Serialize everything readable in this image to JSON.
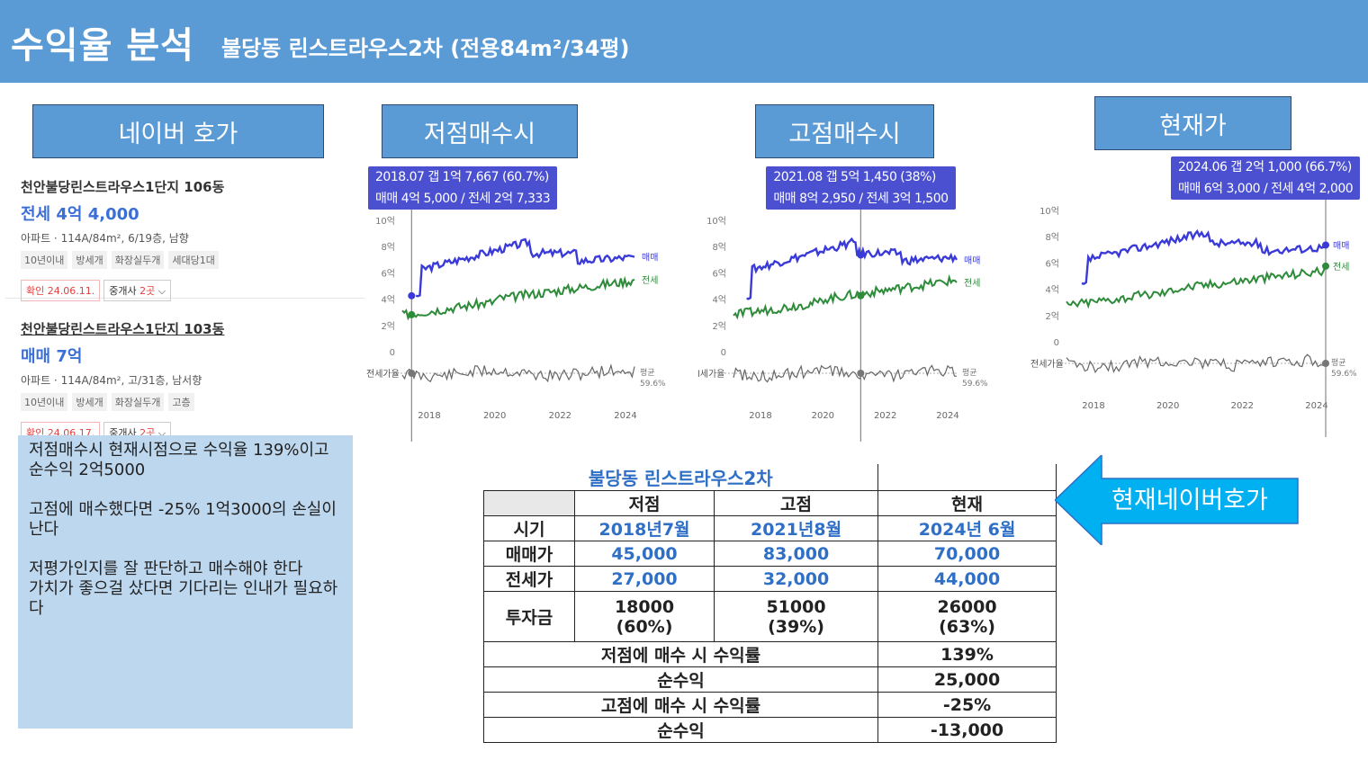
{
  "header": {
    "title": "수익율 분석",
    "subtitle": "불당동 린스트라우스2차 (전용84m²/34평)"
  },
  "sections": {
    "naver": "네이버 호가",
    "low": "저점매수시",
    "high": "고점매수시",
    "current": "현재가",
    "current_naver": "현재네이버호가"
  },
  "listings": [
    {
      "name": "천안불당린스트라우스1단지 106동",
      "price": "전세 4억 4,000",
      "info": "아파트 · 114A/84m², 6/19층, 남향",
      "tags": [
        "10년이내",
        "방세개",
        "화장실두개",
        "세대당1대"
      ],
      "confirm": "확인 24.06.11.",
      "agent": "중개사 ",
      "agent_count": "2곳"
    },
    {
      "name": "천안불당린스트라우스1단지 103동",
      "price": "매매 7억",
      "info": "아파트 · 114A/84m², 고/31층, 남서향",
      "tags": [
        "10년이내",
        "방세개",
        "화장실두개",
        "고층"
      ],
      "confirm": "확인 24.06.17.",
      "agent": "중개사 ",
      "agent_count": "2곳"
    }
  ],
  "note": {
    "lines": [
      "저점매수시  현재시점으로 수익율 139%이고 순수익 2억5000",
      "",
      "고점에 매수했다면 -25% 1억3000의 손실이 난다",
      "",
      "저평가인지를 잘 판단하고 매수해야 한다",
      "가치가 좋으걸 샀다면 기다리는 인내가 필요하다"
    ]
  },
  "charts": [
    {
      "tip1": "2018.07  갭 1억 7,667 (60.7%)",
      "tip2": "매매 4억 5,000 / 전세 2억 7,333",
      "marker": 0.04,
      "ylabels": [
        "10억",
        "8억",
        "6억",
        "4억",
        "2억",
        "0"
      ],
      "ratio_label": "전세가율",
      "avg": "평균",
      "avg_val": "59.6%",
      "sale_label": "매매",
      "jeonse_label": "전세",
      "years": [
        "2018",
        "2020",
        "2022",
        "2024"
      ]
    },
    {
      "tip1": "2021.08  갭 5억 1,450 (38%)",
      "tip2": "매매 8억 2,950 / 전세 3억 1,500",
      "marker": 0.57,
      "ylabels": [
        "10억",
        "8억",
        "6억",
        "4억",
        "2억",
        "0"
      ],
      "ratio_label": "l세가율",
      "avg": "평균",
      "avg_val": "59.6%",
      "sale_label": "매매",
      "jeonse_label": "전세",
      "years": [
        "2018",
        "2020",
        "2022",
        "2024"
      ]
    },
    {
      "tip1": "2024.06  갭 2억 1,000 (66.7%)",
      "tip2": "매매 6억 3,000 / 전세 4억 2,000",
      "marker": 1.0,
      "ylabels": [
        "10억",
        "8억",
        "6억",
        "4억",
        "2억",
        "0"
      ],
      "ratio_label": "전세가율",
      "avg": "평균",
      "avg_val": "59.6%",
      "sale_label": "매매",
      "jeonse_label": "전세",
      "years": [
        "2018",
        "2020",
        "2022",
        "2024"
      ]
    }
  ],
  "table": {
    "title": "불당동 린스트라우스2차",
    "cols": [
      "저점",
      "고점",
      "현재"
    ],
    "rows": [
      {
        "label": "시기",
        "vals": [
          "2018년7월",
          "2021년8월",
          "2024년 6월"
        ]
      },
      {
        "label": "매매가",
        "vals": [
          "45,000",
          "83,000",
          "70,000"
        ]
      },
      {
        "label": "전세가",
        "vals": [
          "27,000",
          "32,000",
          "44,000"
        ]
      }
    ],
    "invest": {
      "label": "투자금",
      "vals": [
        "18000",
        "51000",
        "26000"
      ],
      "pcts": [
        "(60%)",
        "(39%)",
        "(63%)"
      ]
    },
    "summary": [
      {
        "label": "저점에 매수 시 수익률",
        "val": "139%"
      },
      {
        "label": "순수익",
        "val": "25,000"
      },
      {
        "label": "고점에 매수 시 수익률",
        "val": "-25%"
      },
      {
        "label": "순수익",
        "val": "-13,000"
      }
    ]
  },
  "colors": {
    "header": "#5b9bd5",
    "sale": "#3a3ad8",
    "jeonse": "#2e8b3a",
    "note_bg": "#bdd7ee",
    "accent_text": "#2f6fc5"
  }
}
